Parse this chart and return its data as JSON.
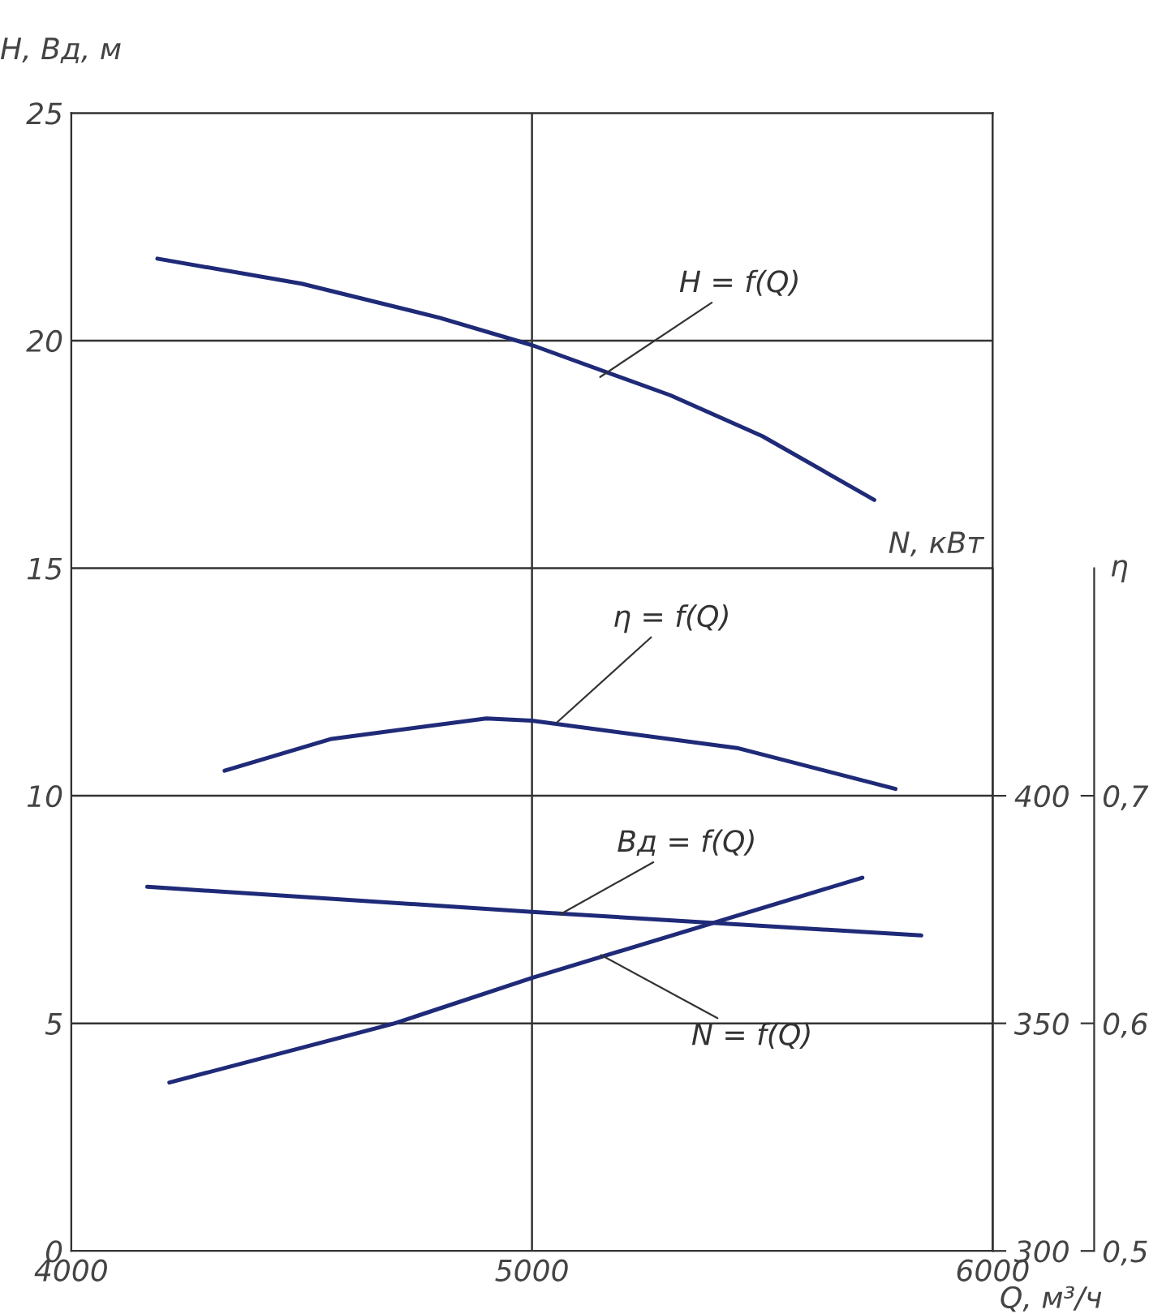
{
  "chart_data": {
    "type": "line",
    "xlabel": "Q, м³/ч",
    "ylabel": "H, Вд, м",
    "y2label": "N, кВт",
    "y3label": "η",
    "xlim": [
      4000,
      6000
    ],
    "xticks": [
      4000,
      5000,
      6000
    ],
    "ylim": [
      0,
      25
    ],
    "yticks": [
      0,
      5,
      10,
      15,
      20,
      25
    ],
    "y2lim": [
      300,
      550
    ],
    "y2ticks": [
      300,
      350,
      400
    ],
    "y3lim": [
      0.5,
      1.0
    ],
    "y3ticks": [
      {
        "value": 0.5,
        "label": "0,5"
      },
      {
        "value": 0.6,
        "label": "0,6"
      },
      {
        "value": 0.7,
        "label": "0,7"
      }
    ],
    "grid": true,
    "marker": "none",
    "line_style": "solid",
    "series": [
      {
        "color": "#1f2a78",
        "axis": "y",
        "x": [
          4187,
          4500,
          4800,
          5000,
          5300,
          5500,
          5743
        ],
        "values": [
          21.8,
          21.25,
          20.5,
          19.9,
          18.8,
          17.9,
          16.5
        ]
      },
      {
        "color": "#1f2a78",
        "axis": "y3",
        "x": [
          4333,
          4565,
          4901,
          5000,
          5445,
          5789
        ],
        "values": [
          0.711,
          0.725,
          0.734,
          0.733,
          0.721,
          0.703
        ]
      },
      {
        "color": "#1f2a78",
        "axis": "y",
        "x": [
          4165,
          5000,
          5845
        ],
        "values": [
          8.0,
          7.45,
          6.93
        ]
      },
      {
        "color": "#1f2a78",
        "axis": "y2",
        "x": [
          4213,
          4702,
          5000,
          5717
        ],
        "values": [
          337,
          350,
          360,
          382
        ]
      }
    ],
    "annotations": [
      {
        "text": "H = f(Q)",
        "x": 5148,
        "y": 19.2
      },
      {
        "text": "η = f(Q)",
        "x": 5053,
        "y": 11.6
      },
      {
        "text": "Вд = f(Q)",
        "x": 5062,
        "y": 7.4
      },
      {
        "text": "N = f(Q)",
        "x": 5150,
        "y": 6.5
      }
    ]
  }
}
